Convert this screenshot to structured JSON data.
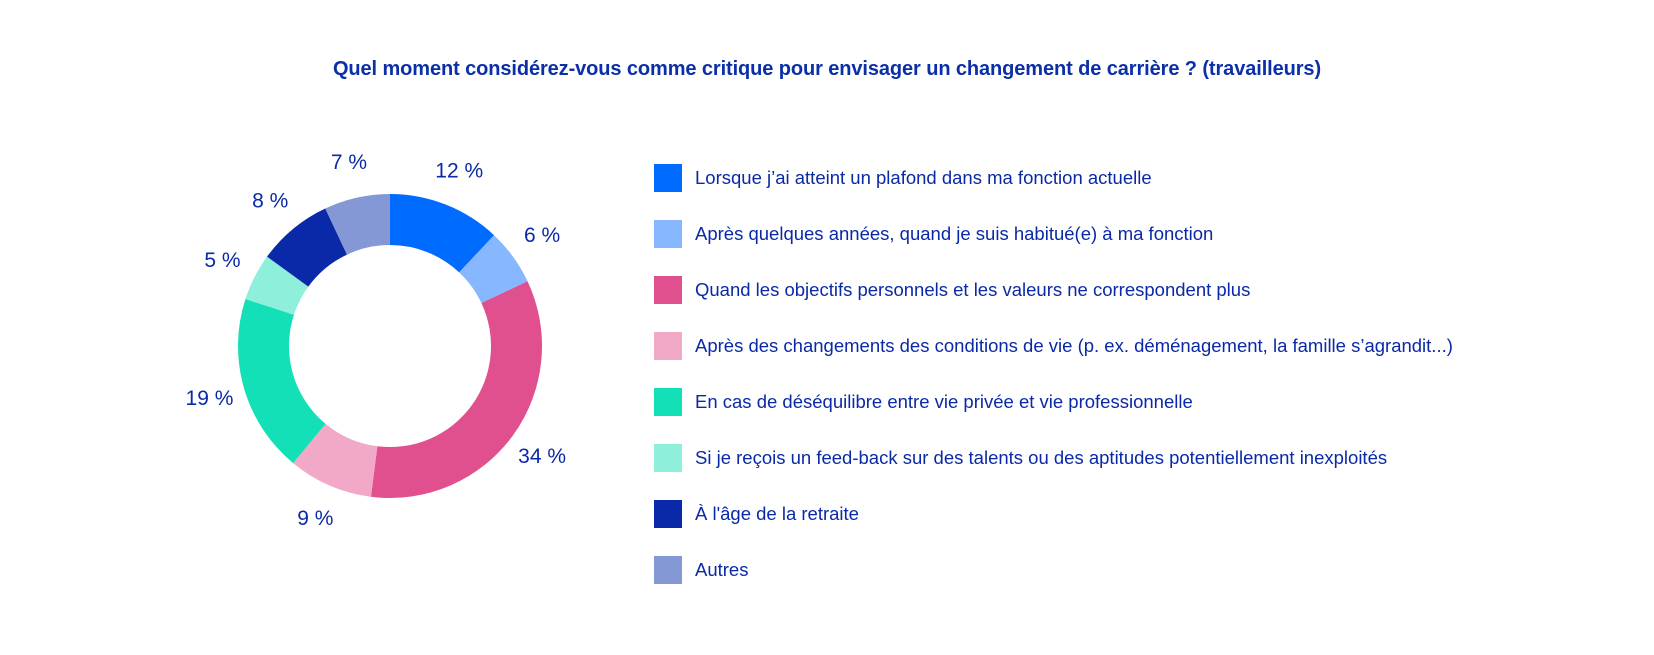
{
  "chart_data": {
    "type": "pie",
    "title": "Quel moment considérez-vous comme critique pour envisager un changement de carrière ? (travailleurs)",
    "categories": [
      "Lorsque j’ai atteint un plafond dans ma fonction actuelle",
      "Après quelques années, quand je suis habitué(e) à ma fonction",
      "Quand les objectifs personnels et les valeurs ne correspondent plus",
      "Après des changements des conditions de vie (p. ex. déménagement, la famille s’agrandit...)",
      "En cas de déséquilibre entre vie privée et vie professionnelle",
      "Si je reçois un feed-back sur des talents ou des aptitudes potentiellement inexploités",
      "À l'âge de la retraite",
      "Autres"
    ],
    "values": [
      12,
      6,
      34,
      9,
      19,
      5,
      8,
      7
    ],
    "value_labels": [
      "12 %",
      "6 %",
      "34 %",
      "9 %",
      "19 %",
      "5 %",
      "8 %",
      "7 %"
    ],
    "colors": [
      "#006cff",
      "#86b7ff",
      "#e0508f",
      "#f2a8c7",
      "#14e0b8",
      "#8ef0da",
      "#0a29a8",
      "#8598d6"
    ],
    "legend_position": "right",
    "donut": true
  }
}
